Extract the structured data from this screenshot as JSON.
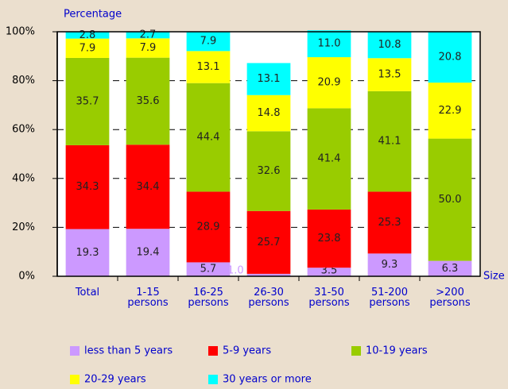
{
  "chart_data": {
    "type": "stacked_bar",
    "y_label": "Percentage",
    "x_label": "Size",
    "categories": [
      "Total",
      "1-15 persons",
      "16-25 persons",
      "26-30 persons",
      "31-50 persons",
      "51-200 persons",
      ">200 persons"
    ],
    "series": [
      {
        "name": "less than 5 years",
        "color": "#cc99ff",
        "values": [
          19.3,
          19.4,
          5.7,
          1.0,
          3.5,
          9.3,
          6.3
        ],
        "value_labels": [
          "19.3",
          "19.4",
          "5.7",
          "1.0",
          "3.5",
          "9.3",
          "6.3"
        ]
      },
      {
        "name": "5-9 years",
        "color": "#ff0000",
        "values": [
          34.3,
          34.4,
          28.9,
          25.7,
          23.8,
          25.3,
          null
        ],
        "value_labels": [
          "34.3",
          "34.4",
          "28.9",
          "25.7",
          "23.8",
          "25.3",
          null
        ]
      },
      {
        "name": "10-19 years",
        "color": "#99cc00",
        "values": [
          35.7,
          35.6,
          44.4,
          32.6,
          41.4,
          41.1,
          50.0
        ],
        "value_labels": [
          "35.7",
          "35.6",
          "44.4",
          "32.6",
          "41.4",
          "41.1",
          "50.0"
        ]
      },
      {
        "name": "20-29 years",
        "color": "#ffff00",
        "values": [
          7.9,
          7.9,
          13.1,
          14.8,
          20.9,
          13.5,
          22.9
        ],
        "value_labels": [
          "7.9",
          "7.9",
          "13.1",
          "14.8",
          "20.9",
          "13.5",
          "22.9"
        ]
      },
      {
        "name": "30 years or more",
        "color": "#00ffff",
        "values": [
          2.8,
          2.7,
          7.9,
          13.1,
          11.0,
          10.8,
          20.8
        ],
        "value_labels": [
          "2.8",
          "2.7",
          "7.9",
          "13.1",
          "11.0",
          "10.8",
          "20.8"
        ]
      }
    ],
    "ylim": [
      0,
      100
    ],
    "yticks": [
      {
        "value": 0,
        "label": "0%"
      },
      {
        "value": 20,
        "label": "20%"
      },
      {
        "value": 40,
        "label": "40%"
      },
      {
        "value": 60,
        "label": "60%"
      },
      {
        "value": 80,
        "label": "80%"
      },
      {
        "value": 100,
        "label": "100%"
      }
    ],
    "grid": true
  }
}
